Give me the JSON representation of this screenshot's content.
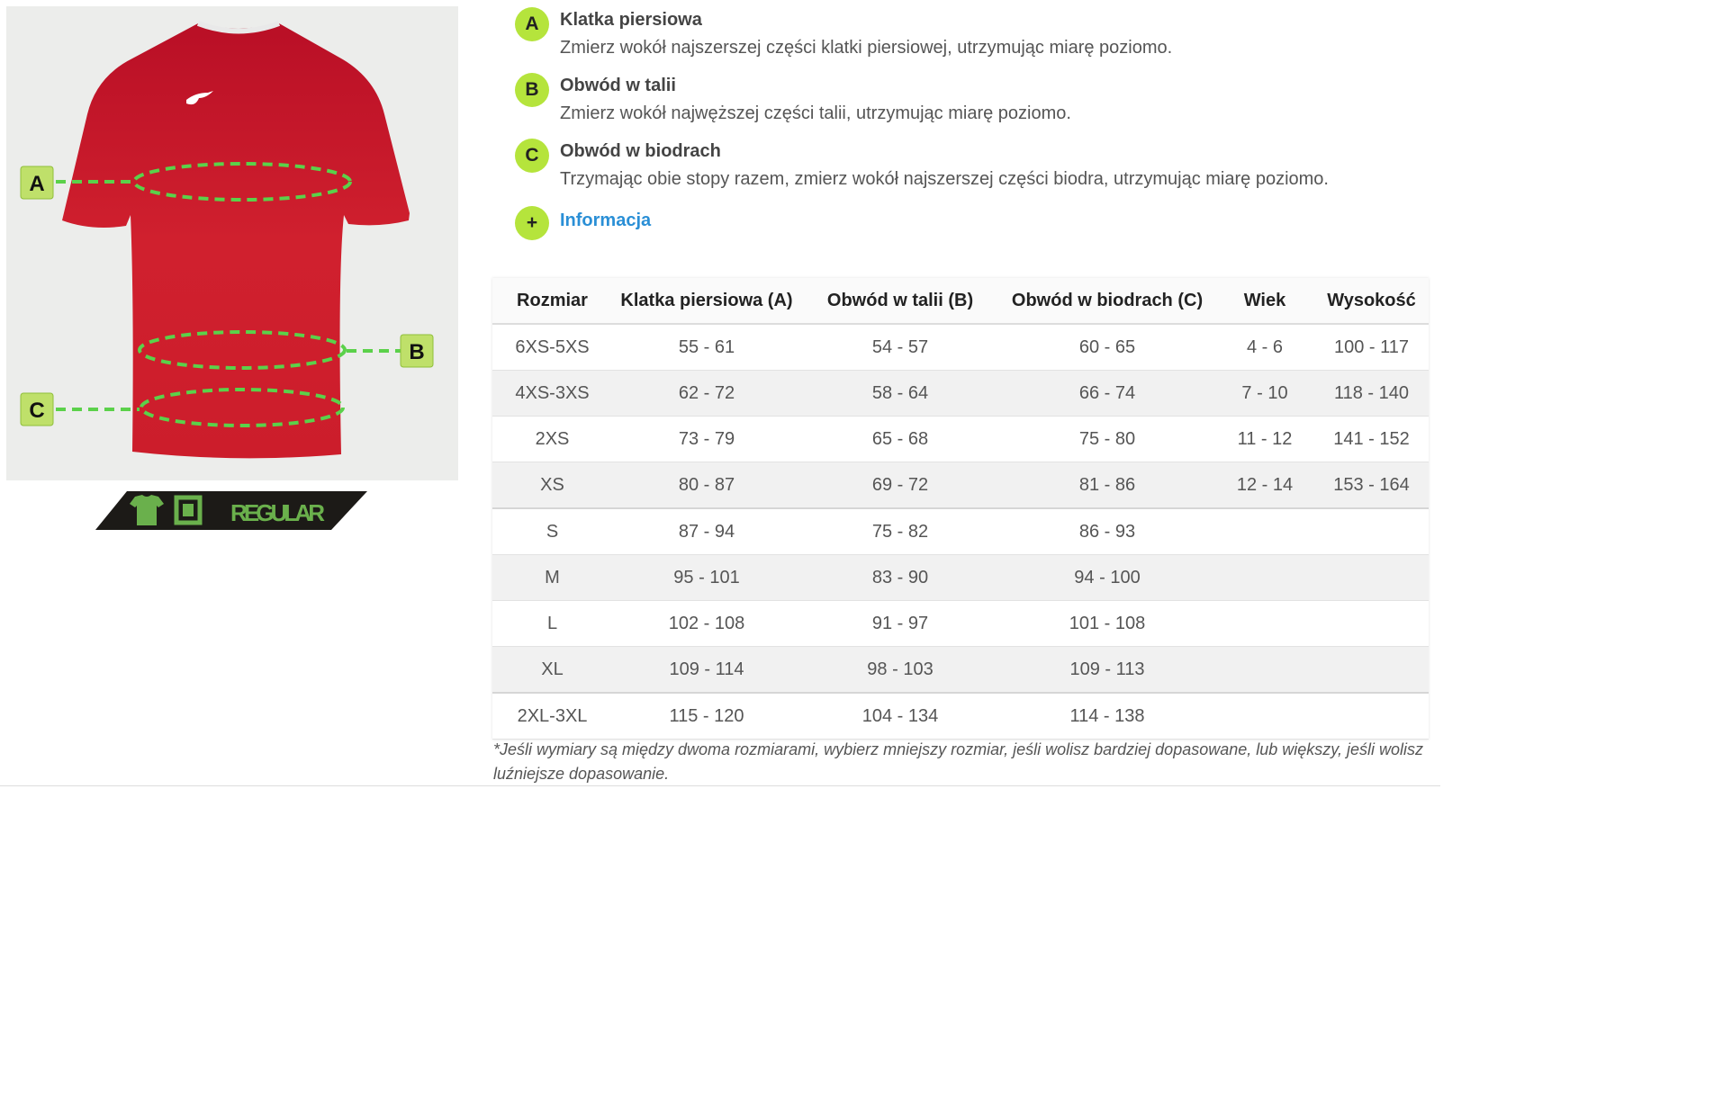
{
  "diagram": {
    "labels": [
      "A",
      "B",
      "C"
    ],
    "shirt_color": "#c8102e",
    "accent_color": "#b5e43c",
    "fit_badge": {
      "label": "REGULAR",
      "icons": [
        "tshirt-icon",
        "square-fit-icon"
      ]
    }
  },
  "measures": [
    {
      "letter": "A",
      "title": "Klatka piersiowa",
      "desc": "Zmierz wokół najszerszej części klatki piersiowej, utrzymując miarę poziomo."
    },
    {
      "letter": "B",
      "title": "Obwód w talii",
      "desc": "Zmierz wokół najwęższej części talii, utrzymując miarę poziomo."
    },
    {
      "letter": "C",
      "title": "Obwód w biodrach",
      "desc": "Trzymając obie stopy razem, zmierz wokół najszerszej części biodra, utrzymując miarę poziomo."
    }
  ],
  "info": {
    "icon": "+",
    "label": "Informacja",
    "color": "#2a8fd6"
  },
  "table": {
    "headers": [
      "Rozmiar",
      "Klatka piersiowa (A)",
      "Obwód w talii (B)",
      "Obwód w biodrach (C)",
      "Wiek",
      "Wysokość"
    ],
    "rows": [
      [
        "6XS-5XS",
        "55 - 61",
        "54 - 57",
        "60 - 65",
        "4 - 6",
        "100 - 117"
      ],
      [
        "4XS-3XS",
        "62 - 72",
        "58 - 64",
        "66 - 74",
        "7 - 10",
        "118 - 140"
      ],
      [
        "2XS",
        "73 - 79",
        "65 - 68",
        "75 - 80",
        "11 - 12",
        "141 - 152"
      ],
      [
        "XS",
        "80 - 87",
        "69 - 72",
        "81 - 86",
        "12 - 14",
        "153 - 164"
      ],
      [
        "S",
        "87 - 94",
        "75 - 82",
        "86 - 93",
        "",
        ""
      ],
      [
        "M",
        "95 - 101",
        "83 - 90",
        "94 - 100",
        "",
        ""
      ],
      [
        "L",
        "102 - 108",
        "91 - 97",
        "101 - 108",
        "",
        ""
      ],
      [
        "XL",
        "109 - 114",
        "98 - 103",
        "109 - 113",
        "",
        ""
      ],
      [
        "2XL-3XL",
        "115 - 120",
        "104 - 134",
        "114 - 138",
        "",
        ""
      ]
    ]
  },
  "footnote": "*Jeśli wymiary są między dwoma rozmiarami, wybierz mniejszy rozmiar, jeśli wolisz bardziej dopasowane, lub większy, jeśli wolisz luźniejsze dopasowanie."
}
